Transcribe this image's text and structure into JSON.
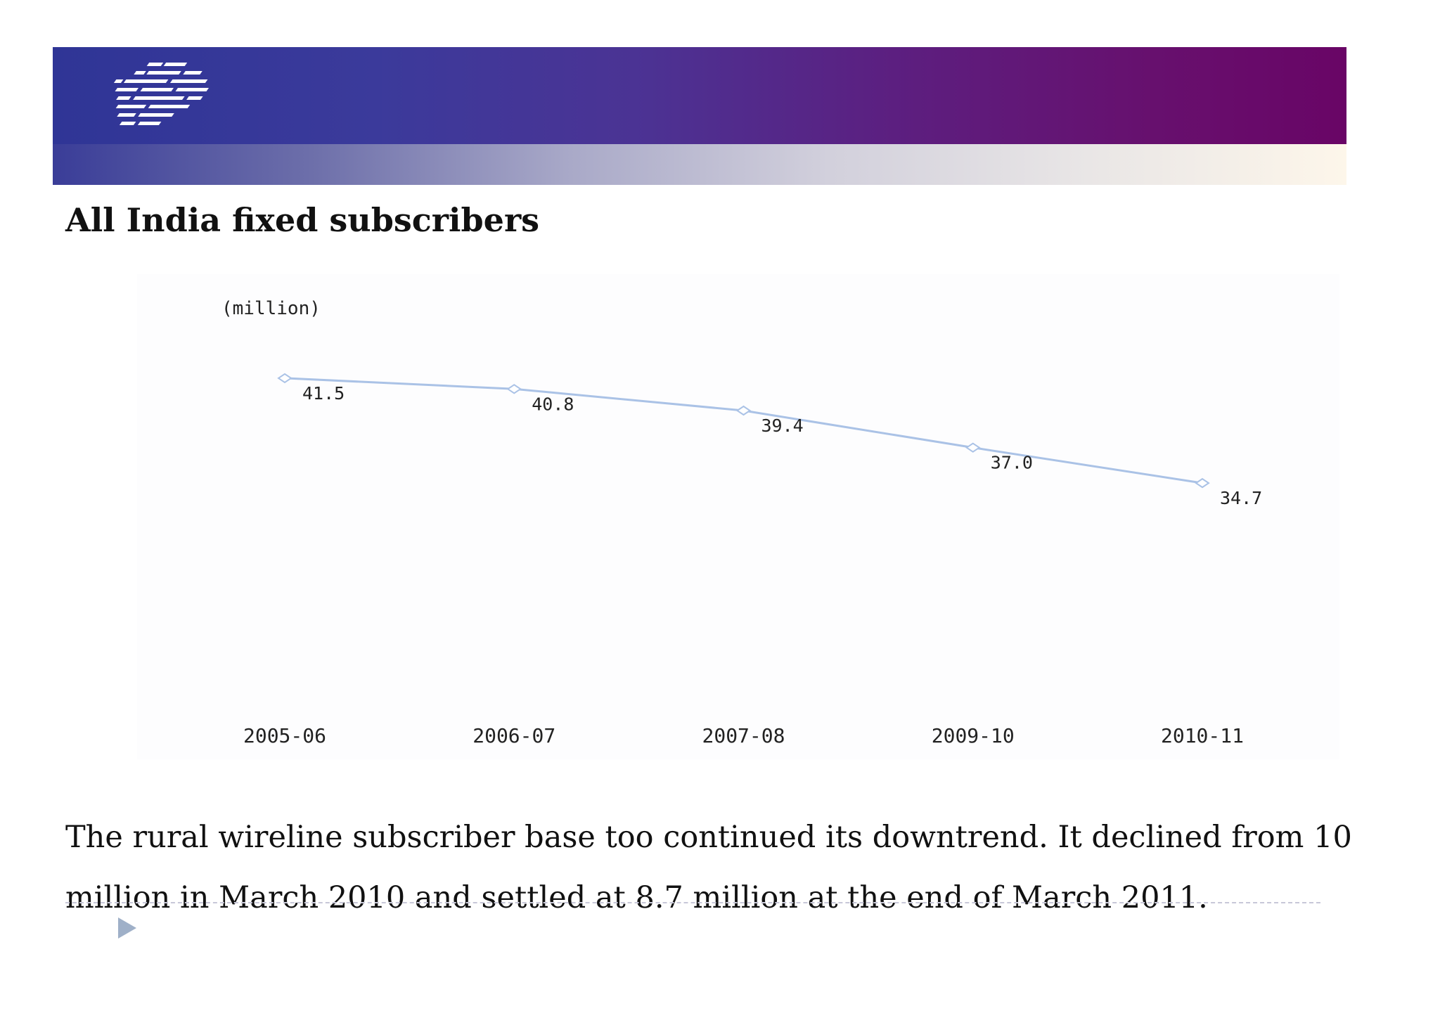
{
  "slide": {
    "title": "All India fixed subscribers",
    "body": "The rural wireline subscriber base too continued its downtrend. It declined from 10 million in March 2010 and settled at 8.7 million at the end of March 2011."
  },
  "colors": {
    "line": "#aac2e6",
    "marker_fill": "#ffffff",
    "marker_stroke": "#aac2e6",
    "banner_left": "#2f3596",
    "banner_right": "#690566"
  },
  "chart_data": {
    "type": "line",
    "title": "",
    "xlabel": "",
    "ylabel": "(million)",
    "categories": [
      "2005-06",
      "2006-07",
      "2007-08",
      "2009-10",
      "2010-11"
    ],
    "series": [
      {
        "values": [
          41.5,
          40.8,
          39.4,
          37.0,
          34.7
        ],
        "labels": [
          "41.5",
          "40.8",
          "39.4",
          "37.0",
          "34.7"
        ]
      }
    ],
    "ylim": [
      25,
      43
    ],
    "grid": false,
    "legend": "none"
  }
}
